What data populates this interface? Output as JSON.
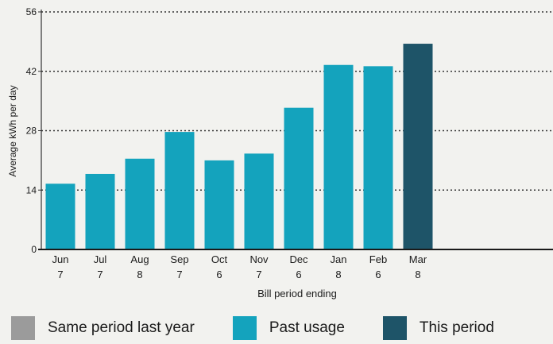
{
  "chart_data": {
    "type": "bar",
    "ylabel": "Average kWh per day",
    "xlabel": "Bill period ending",
    "ylim": [
      0,
      56
    ],
    "yticks": [
      0,
      14,
      28,
      42,
      56
    ],
    "grid": "dotted horizontal",
    "categories": [
      {
        "month": "Jun",
        "day": "7"
      },
      {
        "month": "Jul",
        "day": "7"
      },
      {
        "month": "Aug",
        "day": "8"
      },
      {
        "month": "Sep",
        "day": "7"
      },
      {
        "month": "Oct",
        "day": "6"
      },
      {
        "month": "Nov",
        "day": "7"
      },
      {
        "month": "Dec",
        "day": "6"
      },
      {
        "month": "Jan",
        "day": "8"
      },
      {
        "month": "Feb",
        "day": "6"
      },
      {
        "month": "Mar",
        "day": "8"
      }
    ],
    "series": [
      {
        "name": "Past usage",
        "values": [
          15.5,
          17.8,
          21.4,
          27.7,
          21.0,
          22.6,
          33.4,
          43.5,
          43.2,
          48.5
        ]
      }
    ],
    "bar_series": [
      "Past usage",
      "Past usage",
      "Past usage",
      "Past usage",
      "Past usage",
      "Past usage",
      "Past usage",
      "Past usage",
      "Past usage",
      "This period"
    ],
    "legend": {
      "placement": "bottom",
      "entries": [
        {
          "name": "Same period last year",
          "color": "#9b9b9b"
        },
        {
          "name": "Past usage",
          "color": "#14a3bd"
        },
        {
          "name": "This period",
          "color": "#1e5468"
        }
      ]
    },
    "colors": {
      "past": "#14a3bd",
      "current": "#1e5468",
      "same_last_year": "#9b9b9b"
    }
  }
}
